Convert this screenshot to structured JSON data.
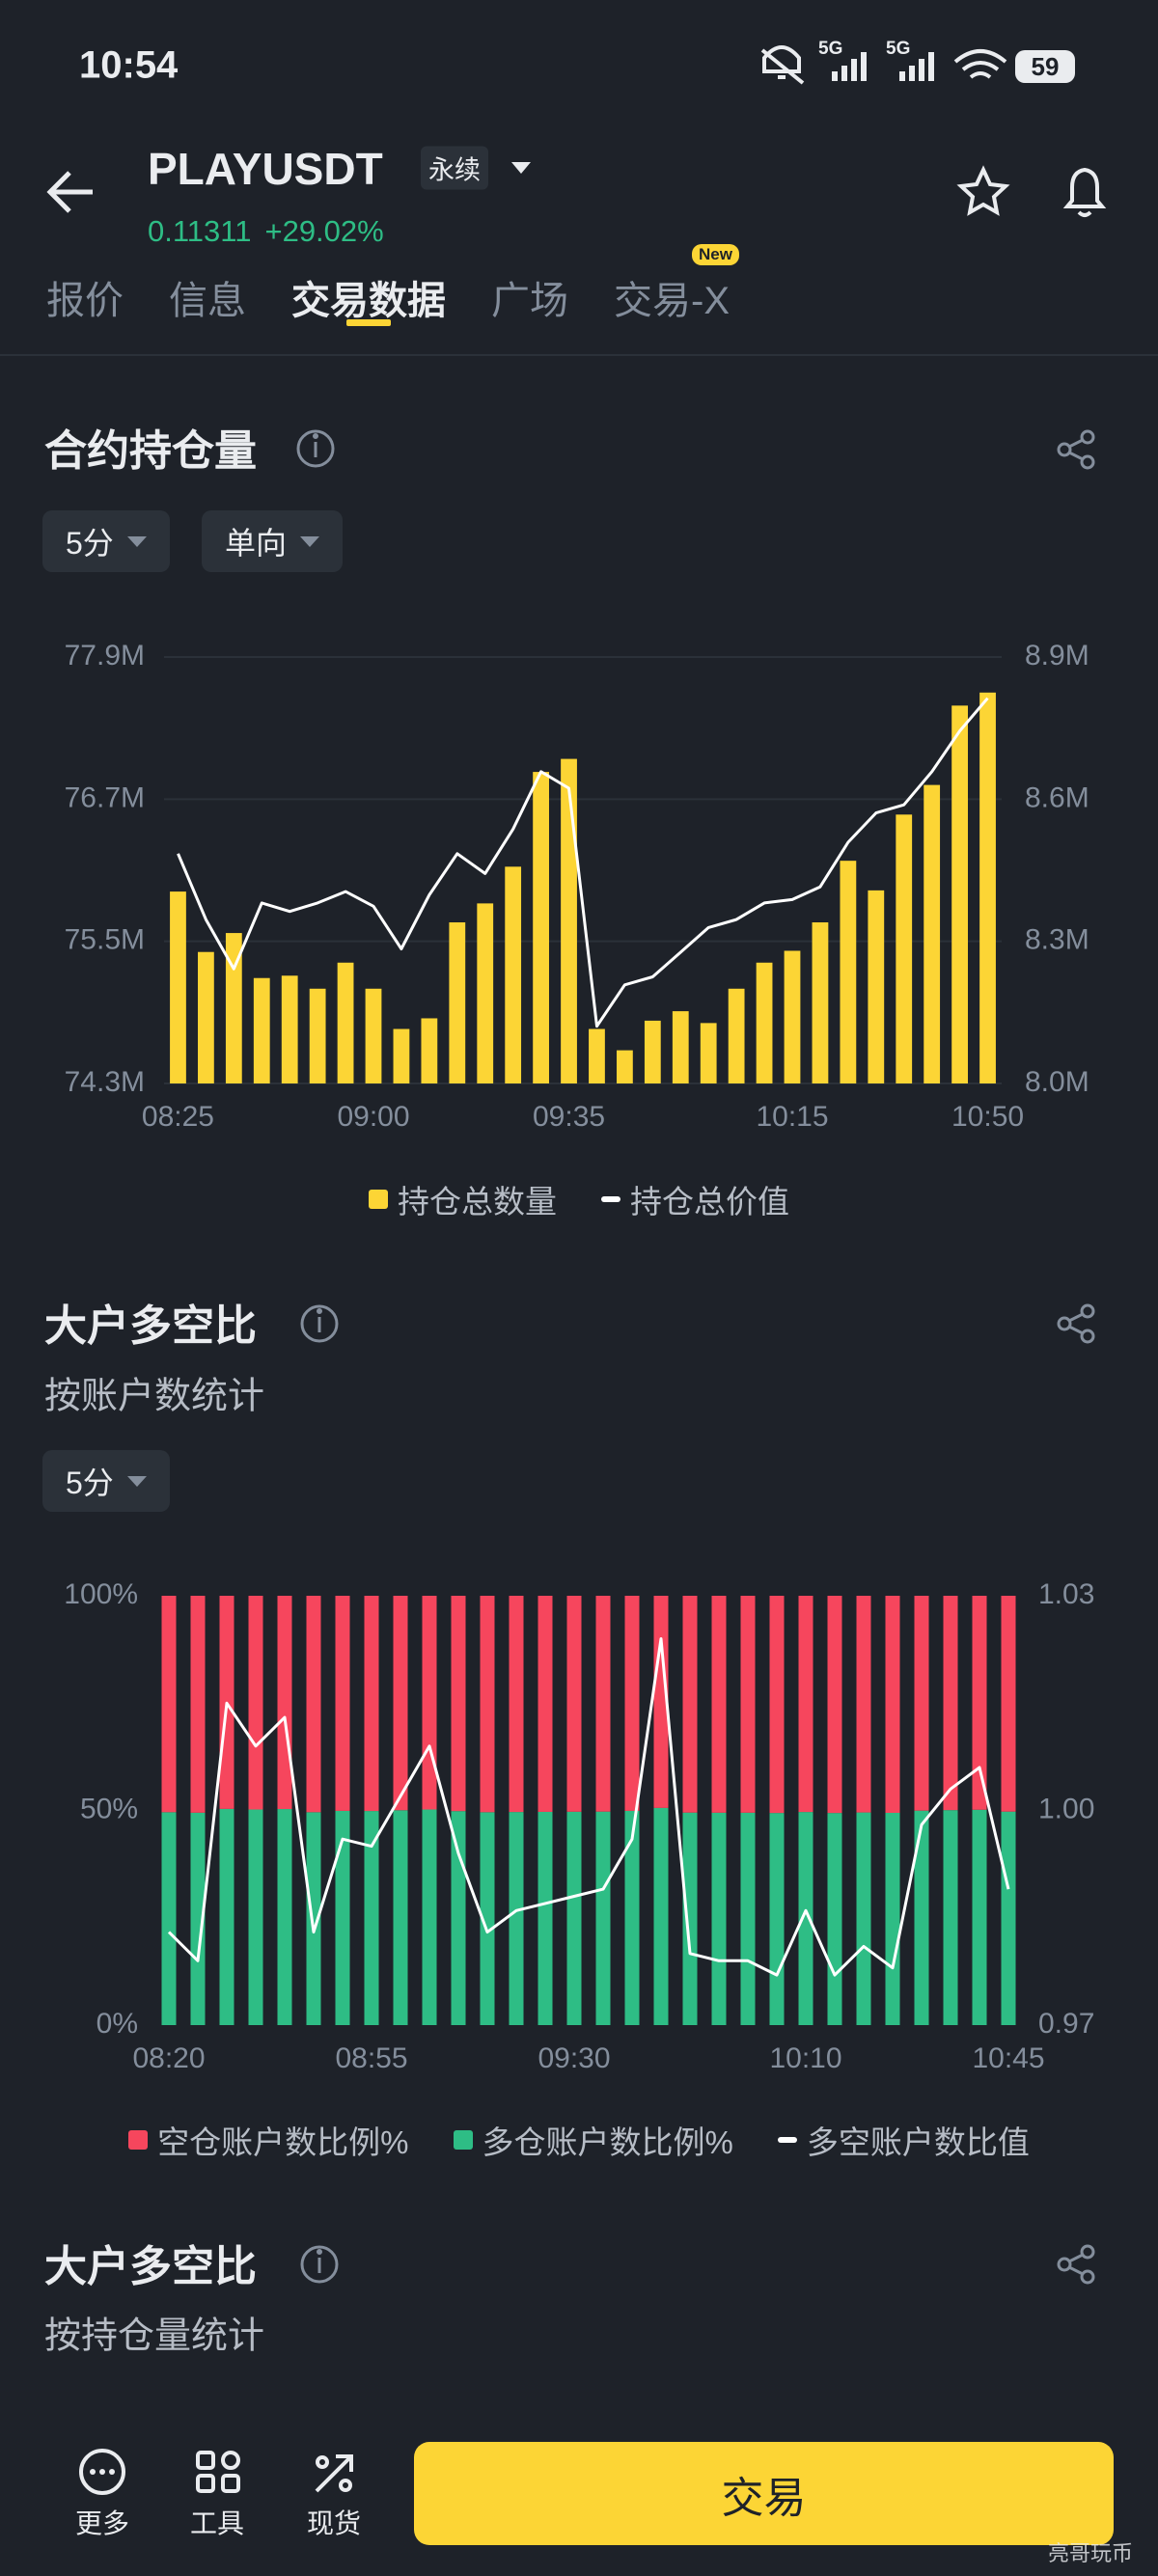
{
  "status_bar": {
    "time": "10:54",
    "network": [
      "5G",
      "5G"
    ],
    "battery": "59"
  },
  "header": {
    "symbol": "PLAYUSDT",
    "contract_type": "永续",
    "price": "0.11311",
    "change": "+29.02%"
  },
  "tabs": {
    "items": [
      "报价",
      "信息",
      "交易数据",
      "广场",
      "交易-X"
    ],
    "active": 2,
    "badge": "New"
  },
  "sections": [
    {
      "title": "合约持仓量",
      "filters": [
        "5分",
        "单向"
      ]
    },
    {
      "title": "大户多空比",
      "subtitle": "按账户数统计",
      "filters": [
        "5分"
      ]
    },
    {
      "title": "大户多空比",
      "subtitle": "按持仓量统计"
    }
  ],
  "chart_data": [
    {
      "type": "bar",
      "grid": true,
      "categories": [
        "08:25",
        null,
        null,
        null,
        null,
        null,
        null,
        "09:00",
        null,
        null,
        null,
        null,
        null,
        null,
        "09:35",
        null,
        null,
        null,
        null,
        null,
        null,
        null,
        "10:15",
        null,
        null,
        null,
        null,
        null,
        null,
        "10:50"
      ],
      "series": [
        {
          "name": "持仓总数量",
          "color": "#fcd535",
          "values": [
            75920000,
            75410000,
            75570000,
            75190000,
            75210000,
            75100000,
            75320000,
            75100000,
            74760000,
            74850000,
            75660000,
            75820000,
            76130000,
            76930000,
            77040000,
            74760000,
            74580000,
            74830000,
            74910000,
            74810000,
            75100000,
            75320000,
            75420000,
            75660000,
            76180000,
            75930000,
            76570000,
            76820000,
            77490000,
            77600000
          ]
        },
        {
          "name": "持仓总价值",
          "color": "#ffffff",
          "type": "line",
          "axis": "y2",
          "values": [
            8485000,
            8346000,
            8242000,
            8381000,
            8363000,
            8381000,
            8405000,
            8374000,
            8284000,
            8398000,
            8485000,
            8443000,
            8537000,
            8658000,
            8623000,
            8121000,
            8208000,
            8225000,
            8277000,
            8329000,
            8346000,
            8381000,
            8388000,
            8415000,
            8509000,
            8571000,
            8588000,
            8658000,
            8744000,
            8813000
          ]
        }
      ],
      "ylim": [
        74300000,
        77900000
      ],
      "yticks": [
        {
          "value": 74300000,
          "label": "74.3M"
        },
        {
          "value": 75500000,
          "label": "75.5M"
        },
        {
          "value": 76700000,
          "label": "76.7M"
        },
        {
          "value": 77900000,
          "label": "77.9M"
        }
      ],
      "y2lim": [
        8000000,
        8900000
      ],
      "y2ticks": [
        {
          "value": 8000000,
          "label": "8.0M"
        },
        {
          "value": 8300000,
          "label": "8.3M"
        },
        {
          "value": 8600000,
          "label": "8.6M"
        },
        {
          "value": 8900000,
          "label": "8.9M"
        }
      ]
    },
    {
      "type": "bar",
      "stacked": true,
      "grid": false,
      "categories": [
        "08:20",
        null,
        null,
        null,
        null,
        null,
        null,
        "08:55",
        null,
        null,
        null,
        null,
        null,
        null,
        "09:30",
        null,
        null,
        null,
        null,
        null,
        null,
        null,
        "10:10",
        null,
        null,
        null,
        null,
        null,
        null,
        "10:45"
      ],
      "series": [
        {
          "name": "空仓账户数比例%",
          "color": "#f6465d",
          "values": [
            50.41,
            50.53,
            49.64,
            49.78,
            49.67,
            50.41,
            50.1,
            50.13,
            49.95,
            49.78,
            50.15,
            50.41,
            50.36,
            50.33,
            50.3,
            50.27,
            50.1,
            49.41,
            50.5,
            50.53,
            50.53,
            50.59,
            50.36,
            50.59,
            50.47,
            50.56,
            50.04,
            49.92,
            49.84,
            50.27
          ]
        },
        {
          "name": "多仓账户数比例%",
          "color": "#2ebd85",
          "values": [
            49.59,
            49.47,
            50.36,
            50.22,
            50.33,
            49.59,
            49.9,
            49.87,
            50.05,
            50.22,
            49.85,
            49.59,
            49.64,
            49.67,
            49.7,
            49.73,
            49.9,
            50.59,
            49.5,
            49.47,
            49.47,
            49.41,
            49.64,
            49.41,
            49.53,
            49.44,
            49.96,
            50.08,
            50.16,
            49.73
          ]
        },
        {
          "name": "多空账户数比值",
          "color": "#ffffff",
          "type": "line",
          "axis": "y2",
          "values": [
            0.983,
            0.979,
            1.015,
            1.009,
            1.013,
            0.983,
            0.996,
            0.995,
            1.002,
            1.009,
            0.994,
            0.983,
            0.986,
            0.987,
            0.988,
            0.989,
            0.996,
            1.024,
            0.98,
            0.979,
            0.979,
            0.977,
            0.986,
            0.977,
            0.981,
            0.978,
            0.998,
            1.003,
            1.006,
            0.989
          ]
        }
      ],
      "ylim": [
        0,
        100
      ],
      "yticks": [
        {
          "value": 0,
          "label": "0%"
        },
        {
          "value": 50,
          "label": "50%"
        },
        {
          "value": 100,
          "label": "100%"
        }
      ],
      "y2lim": [
        0.97,
        1.03
      ],
      "y2ticks": [
        0.97,
        {
          "value": 1,
          "label": "1.00"
        },
        1.03
      ]
    }
  ],
  "bottom_bar": {
    "nav": [
      "更多",
      "工具",
      "现货"
    ],
    "button": "交易"
  },
  "watermark": "亮哥玩币"
}
